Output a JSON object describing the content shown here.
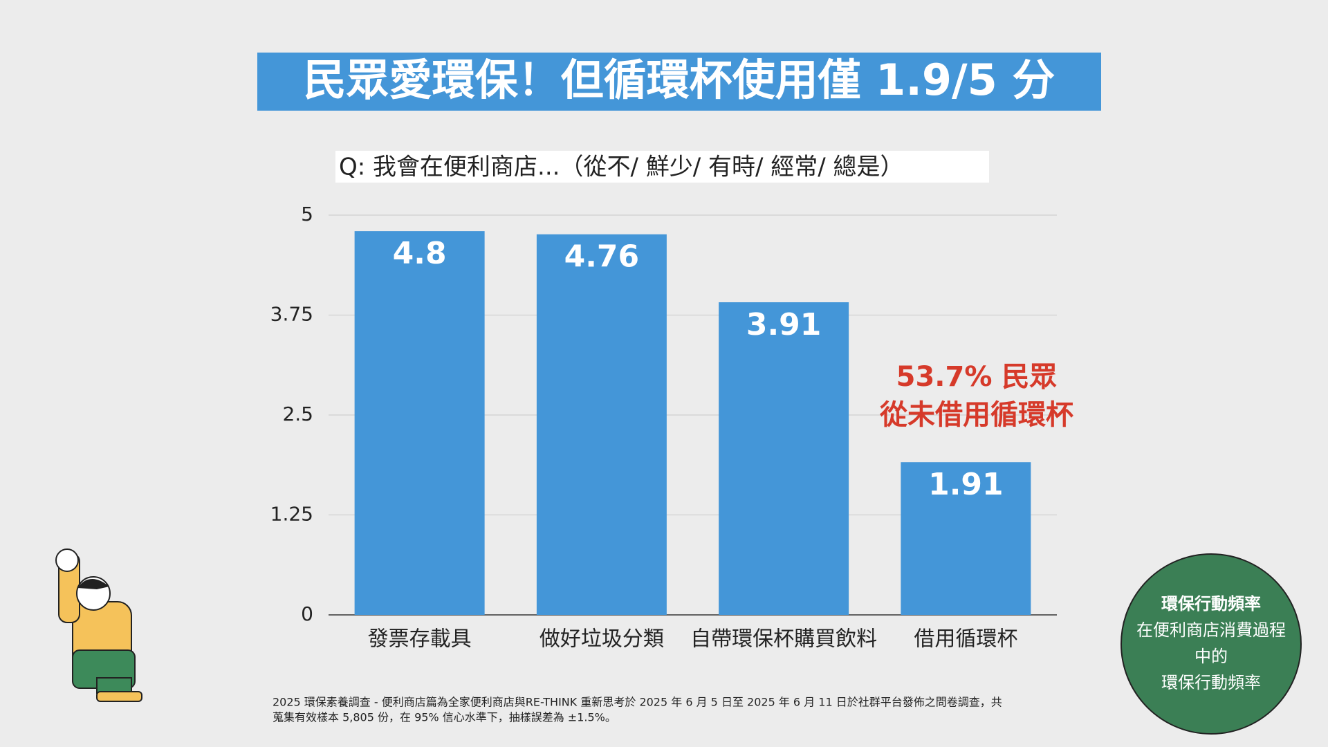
{
  "chart_data": {
    "type": "bar",
    "title": "民眾愛環保！但循環杯使用僅 1.9/5 分",
    "subtitle": "Q: 我會在便利商店...（從不/ 鮮少/ 有時/ 經常/ 總是）",
    "categories": [
      "發票存載具",
      "做好垃圾分類",
      "自帶環保杯購買飲料",
      "借用循環杯"
    ],
    "values": [
      4.8,
      4.76,
      3.91,
      1.91
    ],
    "color": "#4496d8",
    "ylim": [
      0,
      5
    ],
    "yticks": [
      0,
      1.25,
      2.5,
      3.75,
      5
    ],
    "grid": true,
    "annotation": [
      "53.7% 民眾",
      "從未借用循環杯"
    ],
    "footnote": [
      "2025 環保素養調查 - 便利商店篇為全家便利商店與RE-THINK 重新思考於 2025 年 6 月 5 日至 2025 年 6 月 11 日於社群平台發佈之問卷調查，共",
      "蒐集有效樣本 5,805 份，在 95% 信心水準下，抽樣誤差為 ±1.5%。"
    ],
    "badge": [
      "環保行動頻率",
      "在便利商店消費過程",
      "中的",
      "環保行動頻率"
    ]
  }
}
